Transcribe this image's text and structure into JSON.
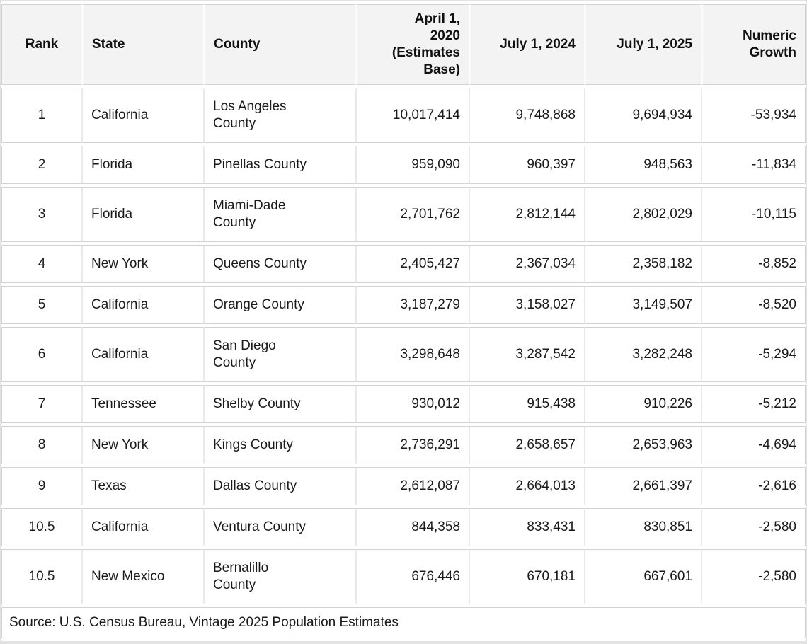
{
  "chart_data": {
    "type": "table",
    "columns": [
      "Rank",
      "State",
      "County",
      "April 1,\n2020\n(Estimates\nBase)",
      "July 1, 2024",
      "July 1, 2025",
      "Numeric\nGrowth"
    ],
    "rows": [
      [
        "1",
        "California",
        "Los Angeles\nCounty",
        "10,017,414",
        "9,748,868",
        "9,694,934",
        "-53,934"
      ],
      [
        "2",
        "Florida",
        "Pinellas County",
        "959,090",
        "960,397",
        "948,563",
        "-11,834"
      ],
      [
        "3",
        "Florida",
        "Miami-Dade\nCounty",
        "2,701,762",
        "2,812,144",
        "2,802,029",
        "-10,115"
      ],
      [
        "4",
        "New York",
        "Queens County",
        "2,405,427",
        "2,367,034",
        "2,358,182",
        "-8,852"
      ],
      [
        "5",
        "California",
        "Orange County",
        "3,187,279",
        "3,158,027",
        "3,149,507",
        "-8,520"
      ],
      [
        "6",
        "California",
        "San Diego\nCounty",
        "3,298,648",
        "3,287,542",
        "3,282,248",
        "-5,294"
      ],
      [
        "7",
        "Tennessee",
        "Shelby County",
        "930,012",
        "915,438",
        "910,226",
        "-5,212"
      ],
      [
        "8",
        "New York",
        "Kings County",
        "2,736,291",
        "2,658,657",
        "2,653,963",
        "-4,694"
      ],
      [
        "9",
        "Texas",
        "Dallas County",
        "2,612,087",
        "2,664,013",
        "2,661,397",
        "-2,616"
      ],
      [
        "10.5",
        "California",
        "Ventura County",
        "844,358",
        "833,431",
        "830,851",
        "-2,580"
      ],
      [
        "10.5",
        "New Mexico",
        "Bernalillo\nCounty",
        "676,446",
        "670,181",
        "667,601",
        "-2,580"
      ]
    ],
    "source": "Source: U.S. Census Bureau, Vintage 2025 Population Estimates",
    "layout_hints": {
      "header_align": [
        "center",
        "left",
        "left",
        "right",
        "right",
        "right",
        "right"
      ],
      "grid": true,
      "legend_position": "none"
    }
  },
  "colors": {
    "header_background": "#f3f3f3",
    "row_background": "#ffffff",
    "border": "#d2d2d2",
    "column_divider": "#e9e9e9",
    "text": "#1a1a1a"
  }
}
